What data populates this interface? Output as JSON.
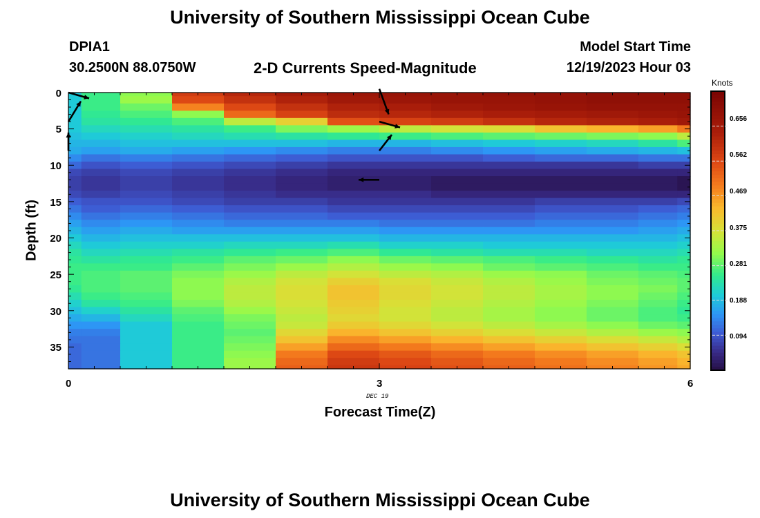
{
  "page": {
    "title_top": "University of Southern Mississippi Ocean Cube",
    "title_bottom": "University of Southern Mississippi Ocean Cube"
  },
  "header": {
    "station": "DPIA1",
    "coords": "30.2500N  88.0750W",
    "plot_title": "2-D Currents Speed-Magnitude",
    "model_label": "Model Start Time",
    "model_time": "12/19/2023 Hour 03"
  },
  "chart_data": {
    "type": "heatmap",
    "title": "2-D Currents Speed-Magnitude",
    "xlabel": "Forecast Time(Z)",
    "ylabel": "Depth (ft)",
    "x_date_label": "DEC 19",
    "x_ticks": [
      "0",
      "3",
      "6"
    ],
    "y_ticks": [
      "0",
      "5",
      "10",
      "15",
      "20",
      "25",
      "30",
      "35"
    ],
    "xlim": [
      0,
      6
    ],
    "ylim": [
      0,
      38
    ],
    "y_inverted": true,
    "colorbar": {
      "title": "Knots",
      "ticks": [
        "0.094",
        "0.188",
        "0.281",
        "0.375",
        "0.469",
        "0.562",
        "0.656"
      ],
      "range": [
        0,
        0.75
      ]
    },
    "x": [
      0,
      0.25,
      0.75,
      1.25,
      1.75,
      2.25,
      2.75,
      3.25,
      3.75,
      4.25,
      4.75,
      5.25,
      5.75,
      6
    ],
    "depths": [
      0,
      1,
      2,
      3,
      4,
      5,
      6,
      7,
      8,
      9,
      10,
      11,
      12,
      13,
      14,
      15,
      16,
      17,
      18,
      19,
      20,
      21,
      22,
      23,
      24,
      25,
      26,
      27,
      28,
      29,
      30,
      31,
      32,
      33,
      34,
      35,
      36,
      37,
      38
    ],
    "speed_knots": [
      [
        0.2,
        0.26,
        0.31,
        0.58,
        0.62,
        0.65,
        0.67,
        0.68,
        0.68,
        0.69,
        0.69,
        0.7,
        0.7,
        0.7
      ],
      [
        0.2,
        0.26,
        0.32,
        0.56,
        0.6,
        0.63,
        0.66,
        0.67,
        0.68,
        0.68,
        0.69,
        0.7,
        0.7,
        0.7
      ],
      [
        0.2,
        0.26,
        0.29,
        0.49,
        0.56,
        0.6,
        0.63,
        0.64,
        0.66,
        0.67,
        0.68,
        0.69,
        0.69,
        0.69
      ],
      [
        0.2,
        0.25,
        0.27,
        0.31,
        0.52,
        0.57,
        0.61,
        0.62,
        0.63,
        0.64,
        0.65,
        0.66,
        0.67,
        0.68
      ],
      [
        0.2,
        0.24,
        0.25,
        0.27,
        0.35,
        0.4,
        0.55,
        0.57,
        0.58,
        0.6,
        0.62,
        0.63,
        0.64,
        0.66
      ],
      [
        0.2,
        0.22,
        0.23,
        0.24,
        0.26,
        0.3,
        0.32,
        0.35,
        0.37,
        0.38,
        0.42,
        0.44,
        0.46,
        0.5
      ],
      [
        0.19,
        0.2,
        0.21,
        0.22,
        0.23,
        0.24,
        0.25,
        0.26,
        0.27,
        0.28,
        0.29,
        0.3,
        0.31,
        0.35
      ],
      [
        0.18,
        0.18,
        0.19,
        0.19,
        0.19,
        0.19,
        0.18,
        0.18,
        0.19,
        0.2,
        0.21,
        0.22,
        0.24,
        0.27
      ],
      [
        0.17,
        0.16,
        0.17,
        0.16,
        0.15,
        0.14,
        0.13,
        0.13,
        0.14,
        0.15,
        0.16,
        0.17,
        0.18,
        0.19
      ],
      [
        0.14,
        0.12,
        0.13,
        0.12,
        0.11,
        0.1,
        0.09,
        0.09,
        0.09,
        0.1,
        0.11,
        0.11,
        0.12,
        0.12
      ],
      [
        0.11,
        0.09,
        0.1,
        0.09,
        0.08,
        0.07,
        0.06,
        0.06,
        0.06,
        0.06,
        0.06,
        0.06,
        0.07,
        0.07
      ],
      [
        0.08,
        0.07,
        0.08,
        0.07,
        0.06,
        0.05,
        0.04,
        0.04,
        0.04,
        0.04,
        0.04,
        0.04,
        0.04,
        0.04
      ],
      [
        0.07,
        0.06,
        0.07,
        0.06,
        0.05,
        0.04,
        0.03,
        0.03,
        0.02,
        0.02,
        0.02,
        0.02,
        0.02,
        0.01
      ],
      [
        0.07,
        0.06,
        0.07,
        0.06,
        0.05,
        0.04,
        0.03,
        0.03,
        0.02,
        0.02,
        0.02,
        0.02,
        0.02,
        0.01
      ],
      [
        0.08,
        0.07,
        0.08,
        0.07,
        0.06,
        0.05,
        0.05,
        0.05,
        0.04,
        0.04,
        0.04,
        0.04,
        0.04,
        0.04
      ],
      [
        0.1,
        0.09,
        0.09,
        0.08,
        0.07,
        0.07,
        0.06,
        0.06,
        0.06,
        0.06,
        0.07,
        0.07,
        0.07,
        0.08
      ],
      [
        0.12,
        0.1,
        0.11,
        0.1,
        0.09,
        0.09,
        0.08,
        0.08,
        0.08,
        0.08,
        0.09,
        0.09,
        0.1,
        0.11
      ],
      [
        0.14,
        0.12,
        0.13,
        0.12,
        0.11,
        0.11,
        0.1,
        0.1,
        0.1,
        0.1,
        0.11,
        0.11,
        0.12,
        0.13
      ],
      [
        0.16,
        0.14,
        0.15,
        0.14,
        0.13,
        0.13,
        0.13,
        0.12,
        0.12,
        0.12,
        0.13,
        0.13,
        0.14,
        0.15
      ],
      [
        0.18,
        0.16,
        0.17,
        0.16,
        0.16,
        0.16,
        0.16,
        0.15,
        0.15,
        0.15,
        0.15,
        0.15,
        0.16,
        0.17
      ],
      [
        0.2,
        0.18,
        0.19,
        0.19,
        0.19,
        0.19,
        0.19,
        0.18,
        0.18,
        0.18,
        0.18,
        0.18,
        0.18,
        0.19
      ],
      [
        0.22,
        0.2,
        0.21,
        0.21,
        0.22,
        0.22,
        0.23,
        0.21,
        0.21,
        0.2,
        0.2,
        0.2,
        0.2,
        0.21
      ],
      [
        0.24,
        0.22,
        0.23,
        0.24,
        0.25,
        0.26,
        0.27,
        0.25,
        0.24,
        0.23,
        0.23,
        0.22,
        0.22,
        0.23
      ],
      [
        0.25,
        0.24,
        0.25,
        0.26,
        0.28,
        0.29,
        0.31,
        0.29,
        0.28,
        0.27,
        0.26,
        0.25,
        0.24,
        0.25
      ],
      [
        0.26,
        0.26,
        0.26,
        0.28,
        0.3,
        0.32,
        0.34,
        0.32,
        0.31,
        0.29,
        0.28,
        0.27,
        0.26,
        0.26
      ],
      [
        0.26,
        0.27,
        0.28,
        0.3,
        0.32,
        0.35,
        0.37,
        0.35,
        0.34,
        0.32,
        0.31,
        0.29,
        0.28,
        0.27
      ],
      [
        0.26,
        0.27,
        0.28,
        0.31,
        0.34,
        0.37,
        0.4,
        0.38,
        0.36,
        0.34,
        0.32,
        0.3,
        0.29,
        0.28
      ],
      [
        0.25,
        0.27,
        0.28,
        0.31,
        0.35,
        0.38,
        0.42,
        0.39,
        0.37,
        0.35,
        0.33,
        0.31,
        0.3,
        0.28
      ],
      [
        0.23,
        0.26,
        0.27,
        0.31,
        0.35,
        0.38,
        0.42,
        0.39,
        0.37,
        0.35,
        0.33,
        0.31,
        0.29,
        0.27
      ],
      [
        0.21,
        0.24,
        0.26,
        0.3,
        0.34,
        0.37,
        0.41,
        0.38,
        0.36,
        0.34,
        0.32,
        0.3,
        0.28,
        0.26
      ],
      [
        0.19,
        0.21,
        0.24,
        0.28,
        0.32,
        0.36,
        0.4,
        0.37,
        0.35,
        0.33,
        0.31,
        0.29,
        0.27,
        0.25
      ],
      [
        0.17,
        0.18,
        0.22,
        0.27,
        0.3,
        0.35,
        0.39,
        0.37,
        0.35,
        0.33,
        0.31,
        0.29,
        0.27,
        0.26
      ],
      [
        0.15,
        0.15,
        0.2,
        0.26,
        0.29,
        0.36,
        0.41,
        0.39,
        0.37,
        0.35,
        0.33,
        0.31,
        0.29,
        0.28
      ],
      [
        0.13,
        0.13,
        0.2,
        0.26,
        0.28,
        0.39,
        0.44,
        0.42,
        0.4,
        0.38,
        0.36,
        0.34,
        0.32,
        0.31
      ],
      [
        0.12,
        0.12,
        0.2,
        0.26,
        0.29,
        0.42,
        0.48,
        0.46,
        0.44,
        0.42,
        0.4,
        0.38,
        0.36,
        0.34
      ],
      [
        0.11,
        0.12,
        0.2,
        0.26,
        0.3,
        0.46,
        0.52,
        0.5,
        0.48,
        0.46,
        0.44,
        0.42,
        0.4,
        0.38
      ],
      [
        0.11,
        0.12,
        0.2,
        0.26,
        0.31,
        0.5,
        0.56,
        0.54,
        0.52,
        0.5,
        0.48,
        0.46,
        0.44,
        0.42
      ],
      [
        0.11,
        0.12,
        0.2,
        0.26,
        0.32,
        0.52,
        0.58,
        0.56,
        0.54,
        0.52,
        0.5,
        0.48,
        0.46,
        0.44
      ],
      [
        0.11,
        0.12,
        0.2,
        0.26,
        0.32,
        0.53,
        0.59,
        0.57,
        0.55,
        0.53,
        0.51,
        0.49,
        0.47,
        0.45
      ]
    ],
    "vectors": [
      {
        "t": 0,
        "depth": 0.0,
        "dx": 0.2,
        "dy": 0.8
      },
      {
        "t": 0,
        "depth": 4.0,
        "dx": 0.12,
        "dy": -2.8
      },
      {
        "t": 0,
        "depth": 8.0,
        "dx": 0.0,
        "dy": -2.5
      },
      {
        "t": 3,
        "depth": -0.5,
        "dx": 0.09,
        "dy": 3.5
      },
      {
        "t": 3,
        "depth": 4.0,
        "dx": 0.2,
        "dy": 0.8
      },
      {
        "t": 3,
        "depth": 8.0,
        "dx": 0.12,
        "dy": -2.2
      },
      {
        "t": 3,
        "depth": 12.0,
        "dx": -0.2,
        "dy": 0.0
      }
    ]
  }
}
